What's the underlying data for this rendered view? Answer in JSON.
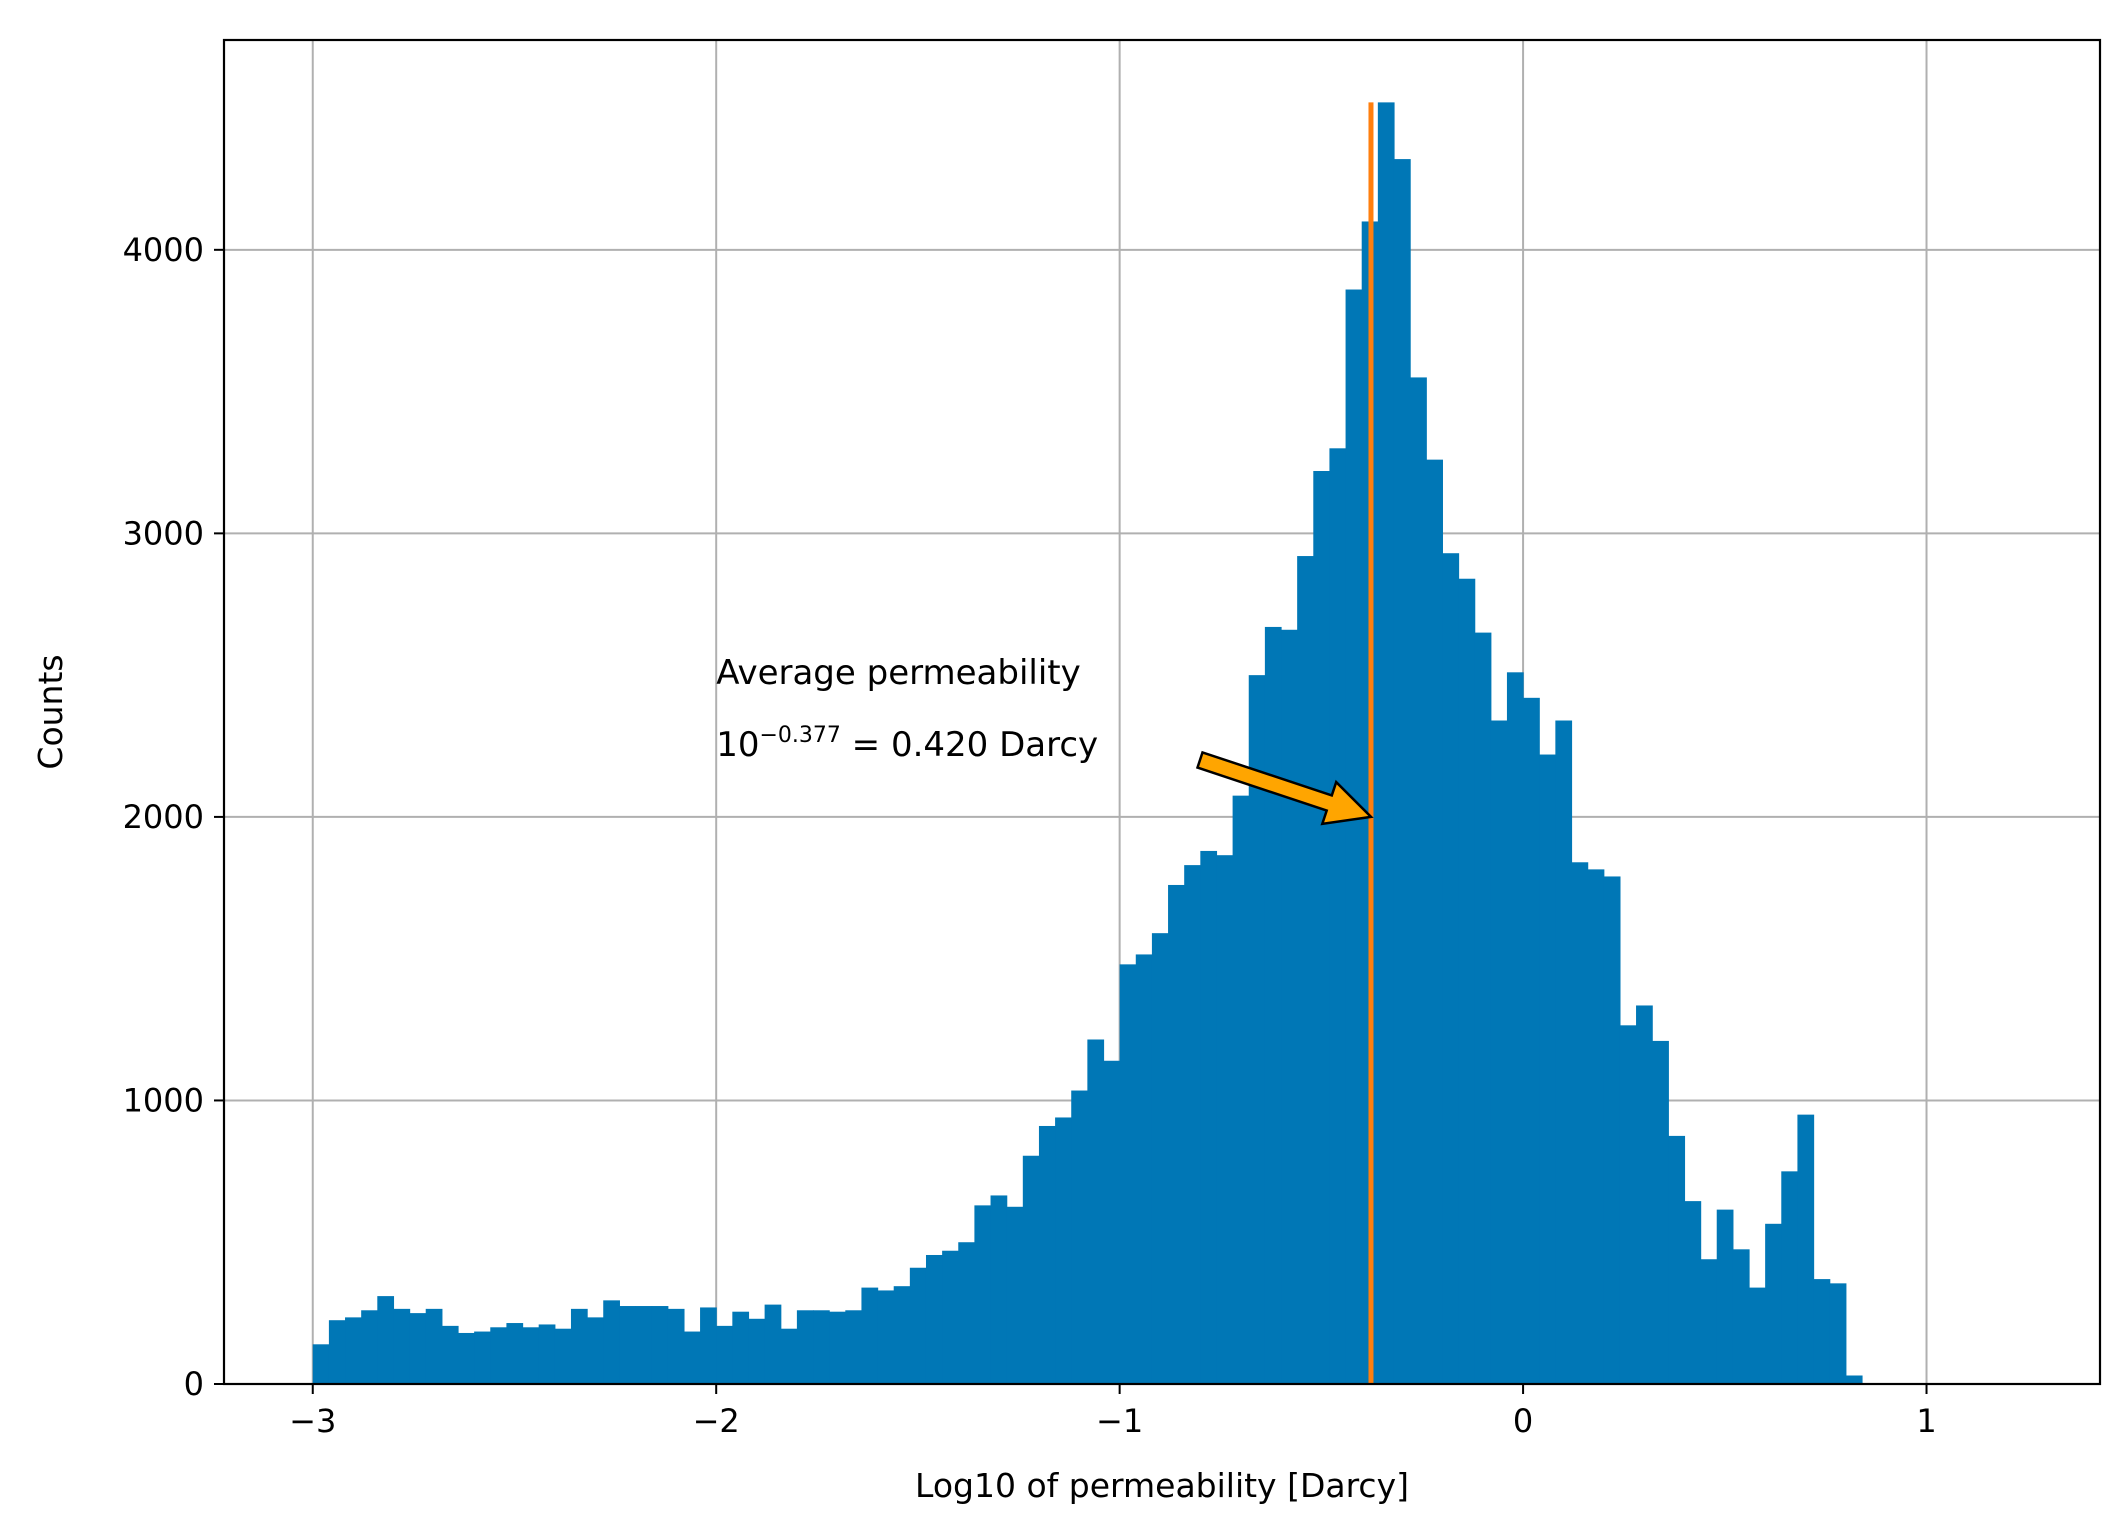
{
  "chart_data": {
    "type": "histogram",
    "xlabel": "Log10 of permeability [Darcy]",
    "ylabel": "Counts",
    "xlim": [
      -3.22,
      1.43
    ],
    "ylim": [
      0,
      4740
    ],
    "grid": true,
    "bin_start": -3.0,
    "bin_width": 0.04,
    "counts": [
      140,
      225,
      235,
      260,
      310,
      265,
      250,
      265,
      205,
      180,
      185,
      200,
      215,
      200,
      210,
      195,
      265,
      235,
      295,
      275,
      275,
      275,
      265,
      185,
      270,
      205,
      255,
      230,
      280,
      195,
      260,
      260,
      255,
      260,
      340,
      330,
      345,
      410,
      455,
      470,
      500,
      630,
      665,
      625,
      805,
      910,
      940,
      1035,
      1215,
      1140,
      1480,
      1515,
      1590,
      1760,
      1830,
      1880,
      1865,
      2075,
      2500,
      2670,
      2660,
      2920,
      3220,
      3300,
      3860,
      4100,
      4520,
      4320,
      3550,
      3260,
      2930,
      2840,
      2650,
      2340,
      2510,
      2420,
      2220,
      2340,
      1840,
      1815,
      1790,
      1265,
      1335,
      1210,
      875,
      645,
      440,
      615,
      475,
      340,
      565,
      750,
      950,
      370,
      355,
      30
    ],
    "bar_color": "#0077b6",
    "x_ticks": [
      {
        "value": -3,
        "label": "−3"
      },
      {
        "value": -2,
        "label": "−2"
      },
      {
        "value": -1,
        "label": "−1"
      },
      {
        "value": 0,
        "label": "0"
      },
      {
        "value": 1,
        "label": "1"
      }
    ],
    "y_ticks": [
      {
        "value": 0,
        "label": "0"
      },
      {
        "value": 1000,
        "label": "1000"
      },
      {
        "value": 2000,
        "label": "2000"
      },
      {
        "value": 3000,
        "label": "3000"
      },
      {
        "value": 4000,
        "label": "4000"
      }
    ],
    "mean_line": {
      "x": -0.377,
      "y_top": 4520,
      "color": "#ff7f0e"
    },
    "annotation": {
      "line1": "Average permeability",
      "line2_base": "10",
      "line2_exponent": "−0.377",
      "line2_rest": " = 0.420 Darcy",
      "text_x": -2.0,
      "text_y": 2300,
      "arrow_tip_x": -0.377,
      "arrow_tip_y": 2000,
      "arrow_color": "#ffa500"
    }
  }
}
